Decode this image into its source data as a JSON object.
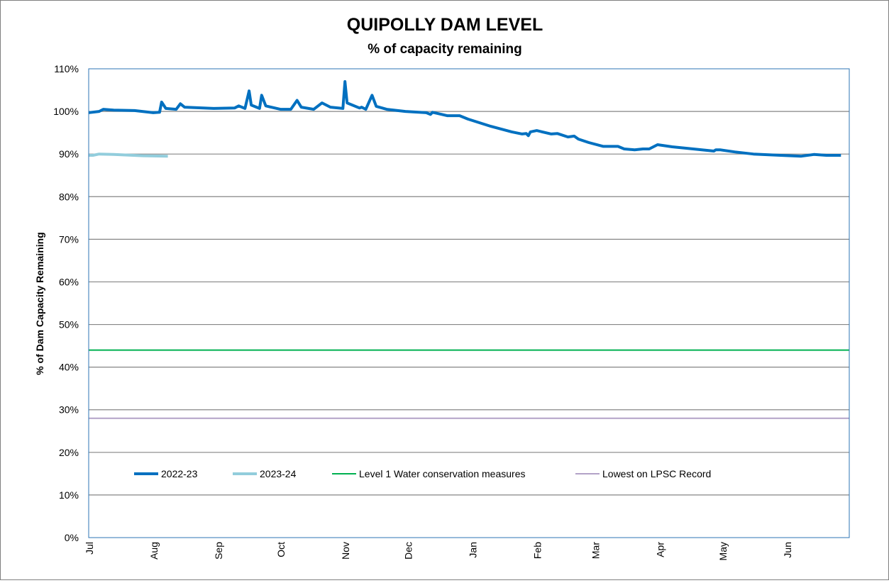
{
  "chart_data": {
    "type": "line",
    "title": "QUIPOLLY DAM LEVEL",
    "subtitle": "% of capacity remaining",
    "xlabel": "",
    "ylabel": "% of Dam Capacity Remaining",
    "x_unit": "days since 1 Jul",
    "xlim": [
      0,
      365
    ],
    "ylim": [
      0,
      110
    ],
    "grid": true,
    "legend_placement": "bottom-inside",
    "y_ticks": [
      "0%",
      "10%",
      "20%",
      "30%",
      "40%",
      "50%",
      "60%",
      "70%",
      "80%",
      "90%",
      "100%",
      "110%"
    ],
    "x_ticks": [
      {
        "label": "Jul",
        "day": 0
      },
      {
        "label": "Aug",
        "day": 31
      },
      {
        "label": "Sep",
        "day": 62
      },
      {
        "label": "Oct",
        "day": 92
      },
      {
        "label": "Nov",
        "day": 123
      },
      {
        "label": "Dec",
        "day": 153
      },
      {
        "label": "Jan",
        "day": 184
      },
      {
        "label": "Feb",
        "day": 215
      },
      {
        "label": "Mar",
        "day": 243
      },
      {
        "label": "Apr",
        "day": 274
      },
      {
        "label": "May",
        "day": 304
      },
      {
        "label": "Jun",
        "day": 335
      }
    ],
    "series": [
      {
        "name": "2022-23",
        "color": "#0070C0",
        "width": 4,
        "points": [
          [
            0,
            99.7
          ],
          [
            5,
            100.0
          ],
          [
            7,
            100.5
          ],
          [
            12,
            100.3
          ],
          [
            22,
            100.2
          ],
          [
            31,
            99.7
          ],
          [
            34,
            99.8
          ],
          [
            35,
            102.2
          ],
          [
            37,
            100.7
          ],
          [
            42,
            100.5
          ],
          [
            44,
            101.8
          ],
          [
            46,
            101.0
          ],
          [
            60,
            100.7
          ],
          [
            70,
            100.8
          ],
          [
            72,
            101.3
          ],
          [
            75,
            100.7
          ],
          [
            77,
            104.8
          ],
          [
            78,
            101.5
          ],
          [
            82,
            100.7
          ],
          [
            83,
            103.8
          ],
          [
            85,
            101.3
          ],
          [
            92,
            100.5
          ],
          [
            97,
            100.5
          ],
          [
            100,
            102.6
          ],
          [
            102,
            101.0
          ],
          [
            108,
            100.5
          ],
          [
            112,
            102.0
          ],
          [
            116,
            101.0
          ],
          [
            122,
            100.7
          ],
          [
            123,
            107.0
          ],
          [
            124,
            102.0
          ],
          [
            130,
            100.8
          ],
          [
            131,
            101.0
          ],
          [
            133,
            100.5
          ],
          [
            136,
            103.8
          ],
          [
            138,
            101.2
          ],
          [
            143,
            100.5
          ],
          [
            152,
            100.0
          ],
          [
            162,
            99.7
          ],
          [
            164,
            99.3
          ],
          [
            165,
            99.8
          ],
          [
            172,
            99.0
          ],
          [
            178,
            99.0
          ],
          [
            182,
            98.2
          ],
          [
            193,
            96.5
          ],
          [
            203,
            95.2
          ],
          [
            208,
            94.7
          ],
          [
            210,
            94.8
          ],
          [
            211,
            94.3
          ],
          [
            212,
            95.2
          ],
          [
            215,
            95.5
          ],
          [
            222,
            94.7
          ],
          [
            225,
            94.8
          ],
          [
            230,
            94.0
          ],
          [
            233,
            94.2
          ],
          [
            235,
            93.5
          ],
          [
            240,
            92.7
          ],
          [
            247,
            91.8
          ],
          [
            254,
            91.8
          ],
          [
            257,
            91.2
          ],
          [
            262,
            91.0
          ],
          [
            266,
            91.2
          ],
          [
            269,
            91.2
          ],
          [
            273,
            92.2
          ],
          [
            280,
            91.7
          ],
          [
            288,
            91.3
          ],
          [
            298,
            90.8
          ],
          [
            300,
            90.7
          ],
          [
            301,
            91.0
          ],
          [
            303,
            91.0
          ],
          [
            310,
            90.5
          ],
          [
            319,
            90.0
          ],
          [
            332,
            89.7
          ],
          [
            342,
            89.5
          ],
          [
            348,
            89.9
          ],
          [
            354,
            89.7
          ],
          [
            361,
            89.7
          ]
        ]
      },
      {
        "name": "2023-24",
        "color": "#92CDDC",
        "width": 4,
        "points": [
          [
            0,
            89.7
          ],
          [
            2,
            89.7
          ],
          [
            5,
            90.0
          ],
          [
            12,
            89.9
          ],
          [
            26,
            89.6
          ],
          [
            38,
            89.5
          ]
        ]
      },
      {
        "name": "Level 1 Water conservation measures",
        "color": "#00B050",
        "width": 2,
        "points": [
          [
            0,
            44
          ],
          [
            365,
            44
          ]
        ]
      },
      {
        "name": "Lowest on LPSC Record",
        "color": "#B3A2C7",
        "width": 2,
        "points": [
          [
            0,
            28
          ],
          [
            365,
            28
          ]
        ]
      }
    ]
  }
}
